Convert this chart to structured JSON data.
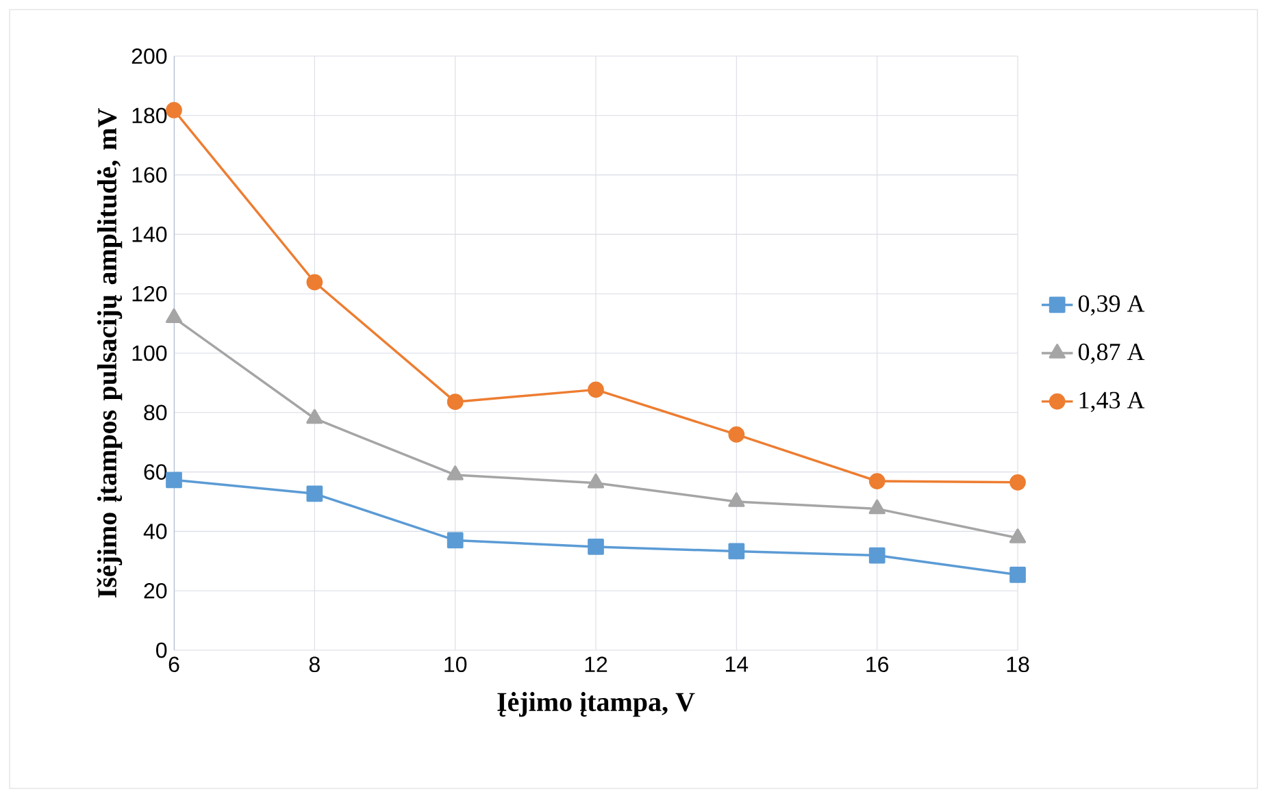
{
  "chart_data": {
    "type": "line",
    "xlabel": "Įėjimo įtampa, V",
    "ylabel": "Išėjimo įtampos pulsacijų amplitudė, mV",
    "x": [
      6,
      8,
      10,
      12,
      14,
      16,
      18
    ],
    "series": [
      {
        "name": "0,39 A",
        "color": "#5b9bd5",
        "marker": "square",
        "values": [
          57.3,
          52.7,
          37,
          34.8,
          33.3,
          31.9,
          25.4
        ]
      },
      {
        "name": "0,87 A",
        "color": "#a5a5a5",
        "marker": "triangle",
        "values": [
          111.9,
          78,
          59,
          56.3,
          50,
          47.6,
          37.8
        ]
      },
      {
        "name": "1,43 A",
        "color": "#ed7d31",
        "marker": "circle",
        "values": [
          181.8,
          123.9,
          83.6,
          87.7,
          72.6,
          56.9,
          56.5
        ]
      }
    ],
    "xlim": [
      6,
      18
    ],
    "xticks": [
      6,
      8,
      10,
      12,
      14,
      16,
      18
    ],
    "ylim": [
      0,
      200
    ],
    "yticks": [
      0,
      20,
      40,
      60,
      80,
      100,
      120,
      140,
      160,
      180,
      200
    ],
    "grid": true,
    "legend": "right",
    "line_style": "solid"
  }
}
